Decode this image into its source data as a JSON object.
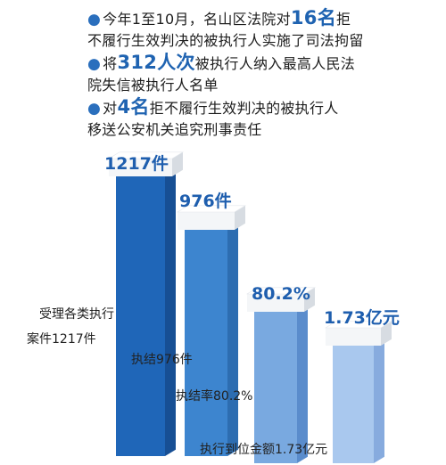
{
  "bullets": [
    {
      "pre": "今年1至10月，名山区法院对",
      "num": "16名",
      "post": "拒",
      "line2": "不履行生效判决的被执行人实施了司法拘留"
    },
    {
      "pre": "将",
      "num": "312人次",
      "post": "被执行人纳入最高人民法",
      "line2": "院失信被执行人名单"
    },
    {
      "pre": "对",
      "num": "4名",
      "post": "拒不履行生效判决的被执行人",
      "line2": "移送公安机关追究刑事责任"
    }
  ],
  "chart_data": {
    "type": "bar",
    "categories": [
      "受理各类执行案件1217件",
      "执结976件",
      "执结率80.2%",
      "执行到位金额1.73亿元"
    ],
    "values": [
      1217,
      976,
      80.2,
      1.73
    ],
    "value_labels": [
      "1217件",
      "976件",
      "80.2%",
      "1.73亿元"
    ],
    "caption_lines": [
      [
        "受理各类执行",
        "案件1217件"
      ],
      [
        "执结976件"
      ],
      [
        "执结率80.2%"
      ],
      [
        "执行到位金额1.73亿元"
      ]
    ],
    "colors": {
      "bar_fronts": [
        "#1f66b8",
        "#3d85cf",
        "#79a9e0",
        "#a9c8ee"
      ],
      "bar_sides": [
        "#174f94",
        "#2d6db1",
        "#5a8ccc",
        "#87abde"
      ],
      "top_face": "#f4f6f8",
      "top_side": "#d7dce2",
      "value_text": "#1e5eae"
    },
    "title": "",
    "xlabel": "",
    "ylabel": ""
  }
}
